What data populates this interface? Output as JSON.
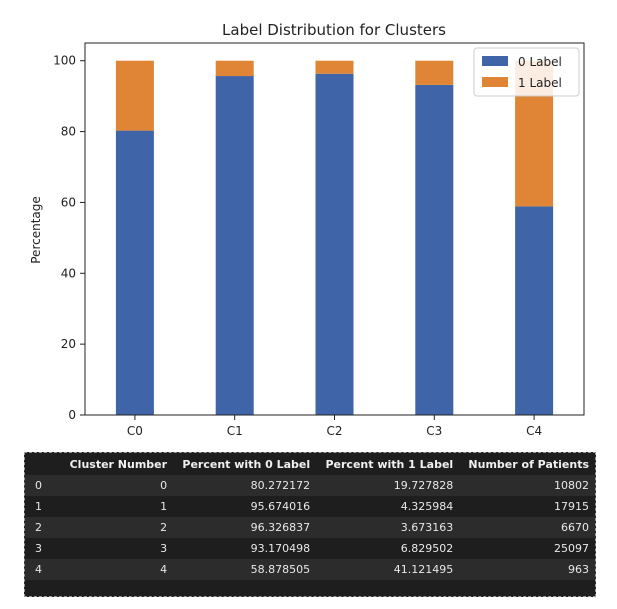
{
  "chart_data": {
    "type": "bar",
    "stacked": true,
    "title": "Label Distribution for Clusters",
    "xlabel": "",
    "ylabel": "Percentage",
    "categories": [
      "C0",
      "C1",
      "C2",
      "C3",
      "C4"
    ],
    "series": [
      {
        "name": "0 Label",
        "color": "#4064a8",
        "values": [
          80.272172,
          95.674016,
          96.326837,
          93.170498,
          58.878505
        ]
      },
      {
        "name": "1 Label",
        "color": "#e08535",
        "values": [
          19.727828,
          4.325984,
          3.673163,
          6.829502,
          41.121495
        ]
      }
    ],
    "ylim": [
      0,
      105
    ],
    "yticks": [
      0,
      20,
      40,
      60,
      80,
      100
    ],
    "grid": false,
    "legend_position": "top-right"
  },
  "table": {
    "columns": [
      "",
      "Cluster Number",
      "Percent with 0 Label",
      "Percent with 1 Label",
      "Number of Patients"
    ],
    "rows": [
      [
        "0",
        "0",
        "80.272172",
        "19.727828",
        "10802"
      ],
      [
        "1",
        "1",
        "95.674016",
        "4.325984",
        "17915"
      ],
      [
        "2",
        "2",
        "96.326837",
        "3.673163",
        "6670"
      ],
      [
        "3",
        "3",
        "93.170498",
        "6.829502",
        "25097"
      ],
      [
        "4",
        "4",
        "58.878505",
        "41.121495",
        "963"
      ]
    ]
  }
}
